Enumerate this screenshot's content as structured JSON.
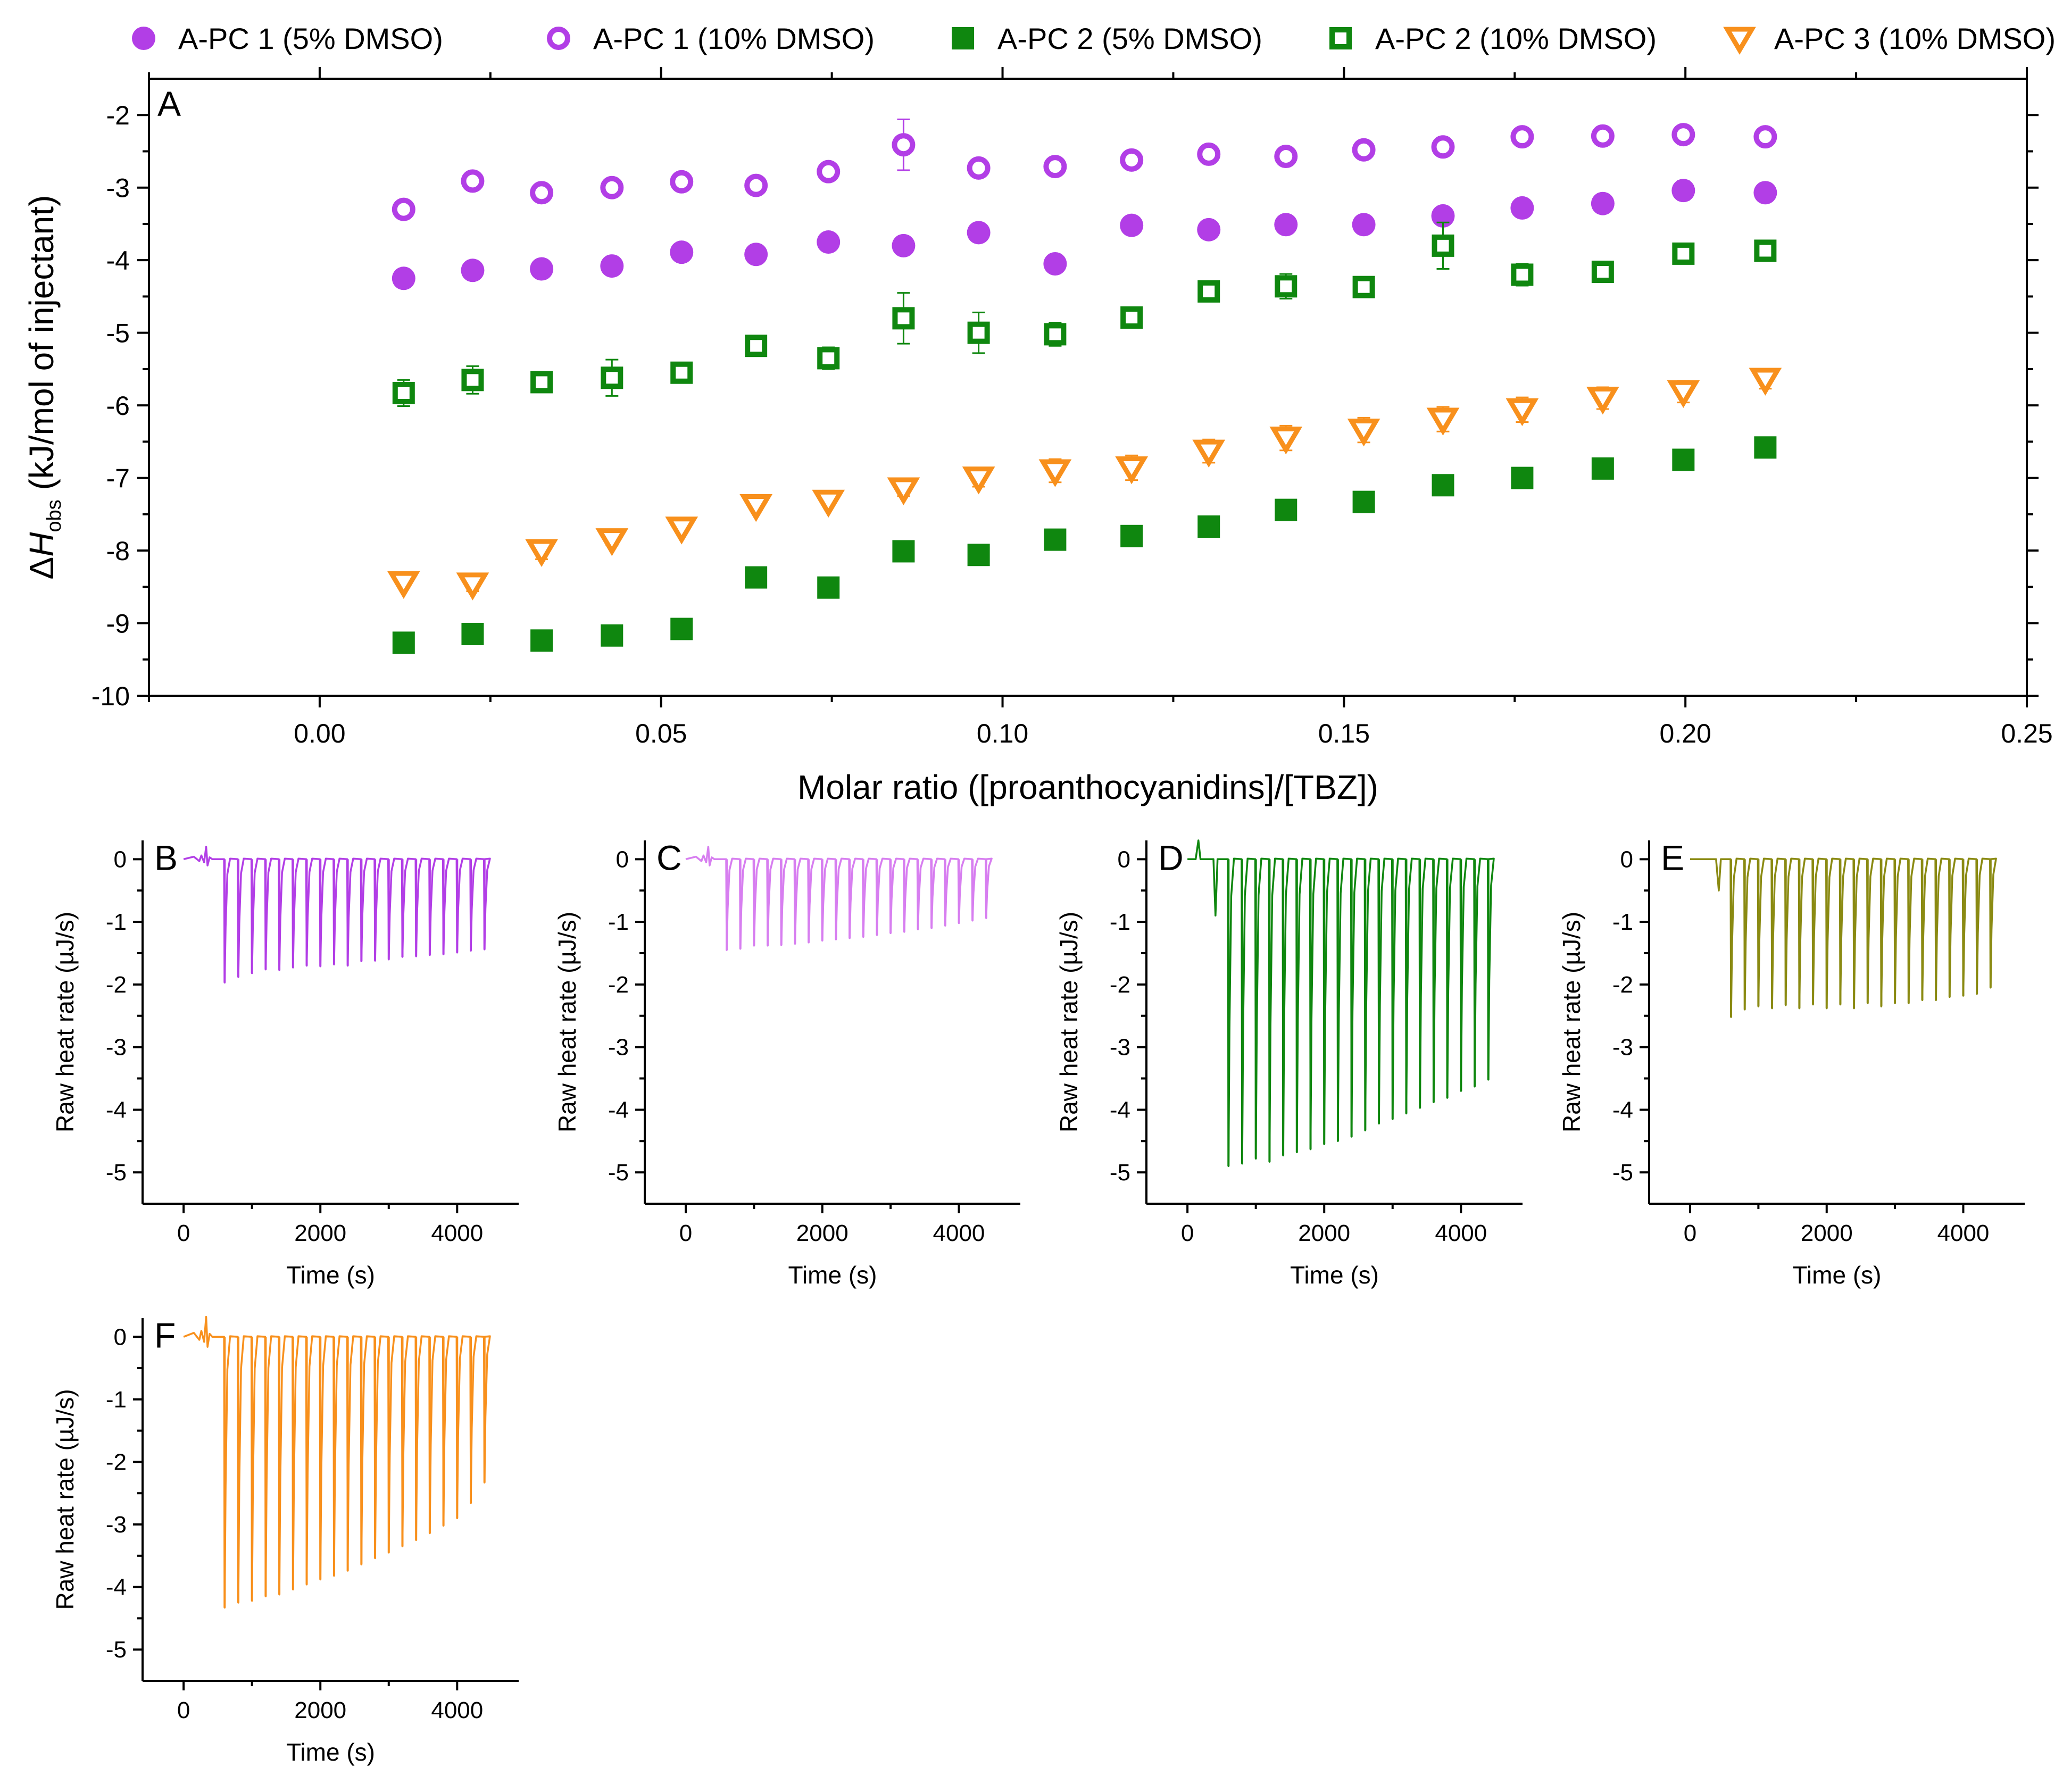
{
  "legend": [
    {
      "label": "A-PC 1 (5% DMSO)",
      "marker": "filled-circle",
      "color": "#b23ee6"
    },
    {
      "label": "A-PC 1 (10% DMSO)",
      "marker": "open-circle",
      "color": "#b23ee6"
    },
    {
      "label": "A-PC 2 (5% DMSO)",
      "marker": "filled-square",
      "color": "#0f870f"
    },
    {
      "label": "A-PC 2 (10% DMSO)",
      "marker": "open-square",
      "color": "#0f870f"
    },
    {
      "label": "A-PC 3 (10% DMSO)",
      "marker": "open-triangle-down",
      "color": "#f8901c"
    }
  ],
  "chart_data": [
    {
      "panel": "A",
      "type": "scatter",
      "xlabel": "Molar ratio ([proanthocyanidins]/[TBZ])",
      "ylabel_prefix": "Δ",
      "ylabel_var": "H",
      "ylabel_sub": "obs",
      "ylabel_rest": " (kJ/mol of injectant)",
      "xlim": [
        -0.025,
        0.25
      ],
      "ylim": [
        -10,
        -1.5
      ],
      "xticks": [
        0.0,
        0.05,
        0.1,
        0.15,
        0.2,
        0.25
      ],
      "xtick_labels": [
        "0.00",
        "0.05",
        "0.10",
        "0.15",
        "0.20",
        "0.25"
      ],
      "yticks": [
        -2,
        -3,
        -4,
        -5,
        -6,
        -7,
        -8,
        -9,
        -10
      ],
      "ytick_labels": [
        "-2",
        "-3",
        "-4",
        "-5",
        "-6",
        "-7",
        "-8",
        "-9",
        "-10"
      ],
      "x": [
        0.0123,
        0.0224,
        0.0325,
        0.0428,
        0.053,
        0.0639,
        0.0745,
        0.0855,
        0.0965,
        0.1077,
        0.1189,
        0.1302,
        0.1415,
        0.1529,
        0.1645,
        0.1761,
        0.1879,
        0.1997,
        0.2117
      ],
      "series": [
        {
          "name": "A-PC 1 (5% DMSO)",
          "marker": "filled-circle",
          "color": "#b23ee6",
          "values": [
            -4.25,
            -4.14,
            -4.12,
            -4.08,
            -3.89,
            -3.92,
            -3.75,
            -3.8,
            -3.62,
            -4.05,
            -3.52,
            -3.58,
            -3.51,
            -3.51,
            -3.39,
            -3.28,
            -3.22,
            -3.04,
            -3.07
          ],
          "errors": [
            0.06,
            0.05,
            0.05,
            0.04,
            0.05,
            0.05,
            0.12,
            0.05,
            0.05,
            0.04,
            0.04,
            0.04,
            0.04,
            0.04,
            0.06,
            0.04,
            0.04,
            0.13,
            0.04
          ]
        },
        {
          "name": "A-PC 1 (10% DMSO)",
          "marker": "open-circle",
          "color": "#b23ee6",
          "values": [
            -3.3,
            -2.91,
            -3.07,
            -3.0,
            -2.92,
            -2.97,
            -2.78,
            -2.41,
            -2.73,
            -2.71,
            -2.62,
            -2.54,
            -2.57,
            -2.48,
            -2.44,
            -2.3,
            -2.29,
            -2.27,
            -2.3
          ],
          "errors": [
            0.05,
            0.04,
            0.12,
            0.05,
            0.04,
            0.04,
            0.05,
            0.35,
            0.05,
            0.04,
            0.04,
            0.04,
            0.04,
            0.04,
            0.05,
            0.04,
            0.05,
            0.04,
            0.04
          ]
        },
        {
          "name": "A-PC 2 (5% DMSO)",
          "marker": "filled-square",
          "color": "#0f870f",
          "values": [
            -9.27,
            -9.15,
            -9.24,
            -9.17,
            -9.08,
            -8.37,
            -8.51,
            -8.01,
            -8.06,
            -7.85,
            -7.8,
            -7.67,
            -7.44,
            -7.33,
            -7.1,
            -7.0,
            -6.87,
            -6.75,
            -6.58
          ],
          "errors": [
            0.04,
            0.04,
            0.04,
            0.04,
            0.04,
            0.12,
            0.04,
            0.04,
            0.04,
            0.04,
            0.04,
            0.04,
            0.04,
            0.04,
            0.12,
            0.04,
            0.04,
            0.04,
            0.04
          ]
        },
        {
          "name": "A-PC 2 (10% DMSO)",
          "marker": "open-square",
          "color": "#0f870f",
          "values": [
            -5.83,
            -5.65,
            -5.68,
            -5.62,
            -5.55,
            -5.18,
            -5.35,
            -4.8,
            -5.0,
            -5.02,
            -4.79,
            -4.43,
            -4.36,
            -4.37,
            -3.8,
            -4.2,
            -4.16,
            -3.91,
            -3.87
          ],
          "errors": [
            0.18,
            0.19,
            0.14,
            0.25,
            0.04,
            0.04,
            0.15,
            0.35,
            0.28,
            0.16,
            0.1,
            0.14,
            0.17,
            0.04,
            0.32,
            0.15,
            0.04,
            0.04,
            0.04
          ]
        },
        {
          "name": "A-PC 3 (10% DMSO)",
          "marker": "open-triangle-down",
          "color": "#f8901c",
          "values": [
            -8.44,
            -8.46,
            -8.0,
            -7.85,
            -7.69,
            -7.38,
            -7.32,
            -7.15,
            -7.0,
            -6.9,
            -6.86,
            -6.63,
            -6.45,
            -6.34,
            -6.19,
            -6.06,
            -5.9,
            -5.81,
            -5.64
          ],
          "errors": [
            0.04,
            0.1,
            0.12,
            0.08,
            0.06,
            0.06,
            0.04,
            0.1,
            0.12,
            0.16,
            0.17,
            0.16,
            0.17,
            0.17,
            0.17,
            0.17,
            0.15,
            0.15,
            0.13
          ]
        }
      ]
    },
    {
      "panel": "B",
      "type": "line",
      "color": "#b23ee6",
      "xlabel": "Time (s)",
      "ylabel": "Raw heat rate (µJ/s)",
      "xlim": [
        -600,
        4900
      ],
      "ylim": [
        -5.5,
        0.3
      ],
      "xticks": [
        0,
        2000,
        4000
      ],
      "xtick_labels": [
        "0",
        "2000",
        "4000"
      ],
      "yticks": [
        0,
        -1,
        -2,
        -3,
        -4,
        -5
      ],
      "ytick_labels": [
        "0",
        "-1",
        "-2",
        "-3",
        "-4",
        "-5"
      ],
      "baseline_end": 4400,
      "first_peak_time": 600,
      "injection_interval": 200,
      "peak_minima": [
        -1.97,
        -1.88,
        -1.82,
        -1.76,
        -1.77,
        -1.73,
        -1.7,
        -1.71,
        -1.68,
        -1.7,
        -1.63,
        -1.62,
        -1.6,
        -1.56,
        -1.55,
        -1.53,
        -1.52,
        -1.49,
        -1.46,
        -1.44
      ]
    },
    {
      "panel": "C",
      "type": "line",
      "color": "#d77ef0",
      "xlabel": "Time (s)",
      "ylabel": "Raw heat rate (µJ/s)",
      "xlim": [
        -600,
        4900
      ],
      "ylim": [
        -5.5,
        0.3
      ],
      "xticks": [
        0,
        2000,
        4000
      ],
      "xtick_labels": [
        "0",
        "2000",
        "4000"
      ],
      "yticks": [
        0,
        -1,
        -2,
        -3,
        -4,
        -5
      ],
      "ytick_labels": [
        "0",
        "-1",
        "-2",
        "-3",
        "-4",
        "-5"
      ],
      "baseline_end": 4400,
      "first_peak_time": 600,
      "injection_interval": 200,
      "peak_minima": [
        -1.45,
        -1.43,
        -1.38,
        -1.38,
        -1.37,
        -1.35,
        -1.33,
        -1.3,
        -1.28,
        -1.26,
        -1.24,
        -1.21,
        -1.18,
        -1.16,
        -1.12,
        -1.1,
        -1.06,
        -1.02,
        -0.98,
        -0.94
      ]
    },
    {
      "panel": "D",
      "type": "line",
      "color": "#0f870f",
      "xlabel": "Time (s)",
      "ylabel": "Raw heat rate (µJ/s)",
      "xlim": [
        -600,
        4900
      ],
      "ylim": [
        -5.5,
        0.3
      ],
      "xticks": [
        0,
        2000,
        4000
      ],
      "xtick_labels": [
        "0",
        "2000",
        "4000"
      ],
      "yticks": [
        0,
        -1,
        -2,
        -3,
        -4,
        -5
      ],
      "ytick_labels": [
        "0",
        "-1",
        "-2",
        "-3",
        "-4",
        "-5"
      ],
      "baseline_end": 4400,
      "first_peak_time": 600,
      "injection_interval": 200,
      "peak_minima": [
        -4.9,
        -4.86,
        -4.78,
        -4.83,
        -4.73,
        -4.68,
        -4.63,
        -4.55,
        -4.5,
        -4.43,
        -4.33,
        -4.22,
        -4.15,
        -4.06,
        -3.97,
        -3.88,
        -3.81,
        -3.7,
        -3.63,
        -3.52
      ]
    },
    {
      "panel": "E",
      "type": "line",
      "color": "#8a8a12",
      "xlabel": "Time (s)",
      "ylabel": "Raw heat rate (µJ/s)",
      "xlim": [
        -600,
        4900
      ],
      "ylim": [
        -5.5,
        0.3
      ],
      "xticks": [
        0,
        2000,
        4000
      ],
      "xtick_labels": [
        "0",
        "2000",
        "4000"
      ],
      "yticks": [
        0,
        -1,
        -2,
        -3,
        -4,
        -5
      ],
      "ytick_labels": [
        "0",
        "-1",
        "-2",
        "-3",
        "-4",
        "-5"
      ],
      "baseline_end": 4400,
      "first_peak_time": 600,
      "injection_interval": 200,
      "peak_minima": [
        -2.52,
        -2.4,
        -2.35,
        -2.38,
        -2.33,
        -2.38,
        -2.32,
        -2.38,
        -2.32,
        -2.38,
        -2.3,
        -2.35,
        -2.3,
        -2.3,
        -2.25,
        -2.25,
        -2.2,
        -2.18,
        -2.15,
        -2.05
      ]
    },
    {
      "panel": "F",
      "type": "line",
      "color": "#f8901c",
      "xlabel": "Time (s)",
      "ylabel": "Raw heat rate (µJ/s)",
      "xlim": [
        -600,
        4900
      ],
      "ylim": [
        -5.5,
        0.3
      ],
      "xticks": [
        0,
        2000,
        4000
      ],
      "xtick_labels": [
        "0",
        "2000",
        "4000"
      ],
      "yticks": [
        0,
        -1,
        -2,
        -3,
        -4,
        -5
      ],
      "ytick_labels": [
        "0",
        "-1",
        "-2",
        "-3",
        "-4",
        "-5"
      ],
      "baseline_end": 4400,
      "first_peak_time": 600,
      "injection_interval": 200,
      "peak_minima": [
        -4.33,
        -4.25,
        -4.22,
        -4.15,
        -4.12,
        -4.04,
        -3.96,
        -3.88,
        -3.82,
        -3.74,
        -3.64,
        -3.54,
        -3.45,
        -3.35,
        -3.25,
        -3.14,
        -3.02,
        -2.9,
        -2.66,
        -2.33
      ]
    }
  ]
}
